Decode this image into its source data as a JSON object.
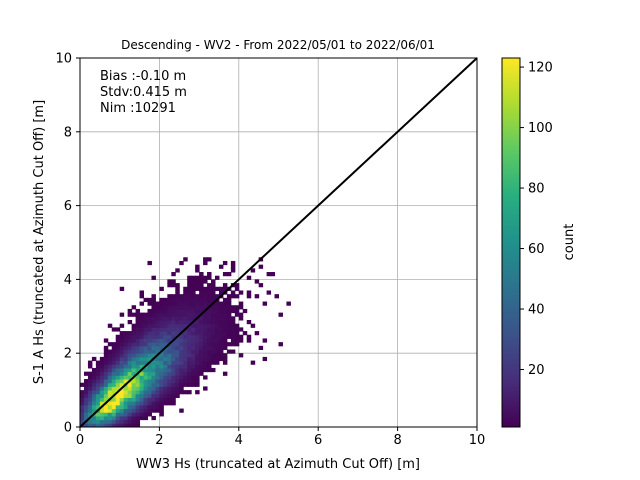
{
  "chart_data": {
    "type": "heatmap",
    "title": "Descending - WV2 - From 2022/05/01 to 2022/06/01",
    "xlabel": "WW3 Hs (truncated at Azimuth Cut Off) [m]",
    "ylabel": "S-1 A Hs (truncated at Azimuth Cut Off) [m]",
    "xlim": [
      0,
      10
    ],
    "ylim": [
      0,
      10
    ],
    "xticks": [
      "0",
      "2",
      "4",
      "6",
      "8",
      "10"
    ],
    "yticks": [
      "0",
      "2",
      "4",
      "6",
      "8",
      "10"
    ],
    "grid": true,
    "bin_size": 0.1,
    "annotations": [
      "Bias :-0.10 m",
      "Stdv:0.415 m",
      "Nim :10291"
    ],
    "reference_line": {
      "from": [
        0,
        0
      ],
      "to": [
        10,
        10
      ],
      "color": "#000000"
    },
    "colorbar": {
      "label": "count",
      "range": [
        1,
        123
      ],
      "ticks": [
        "20",
        "40",
        "60",
        "80",
        "100",
        "120"
      ],
      "colormap": "viridis"
    },
    "density_model": {
      "peak_count": 123,
      "peak_at": [
        0.75,
        0.75
      ],
      "bias_m": -0.1,
      "spread_along_diagonal_m": 0.8,
      "spread_across_diagonal_m": 0.3,
      "x_extent": [
        0,
        5.3
      ],
      "y_extent": [
        0,
        4.6
      ]
    }
  }
}
